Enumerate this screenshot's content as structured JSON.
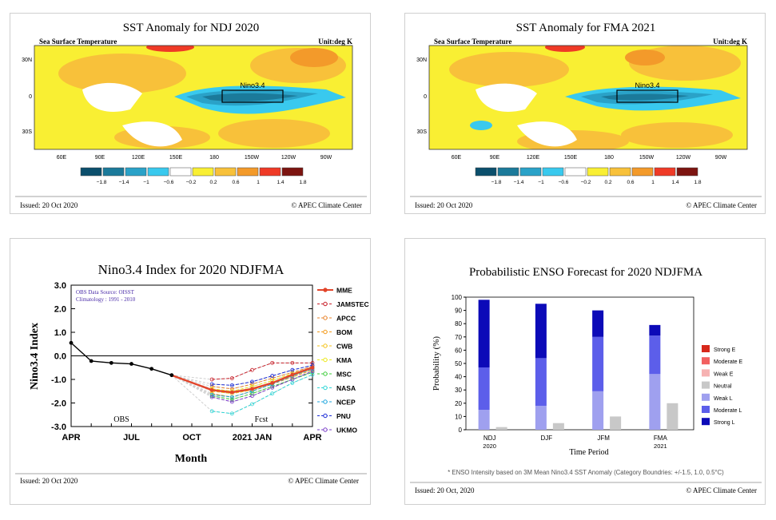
{
  "colors": {
    "cb": [
      "#0b4f6c",
      "#1b7a9a",
      "#2aa2c8",
      "#39c9ee",
      "#ffffff",
      "#f9ef33",
      "#f8c13a",
      "#f39a2a",
      "#ef3a26",
      "#7c1410"
    ],
    "obs_line": "#000000",
    "mme": "#e2452b",
    "prob": {
      "strong_e": "#d7281b",
      "moderate_e": "#f26060",
      "weak_e": "#f6b2b2",
      "neutral": "#c8c8c8",
      "weak_l": "#9fa0ef",
      "moderate_l": "#5c5eea",
      "strong_l": "#0c0ab8"
    }
  },
  "map1": {
    "title": "SST Anomaly for NDJ 2020",
    "left_label": "Sea Surface Temperature",
    "unit": "Unit:deg K",
    "box_label": "Nino3.4",
    "lat_labels": [
      "30N",
      "0",
      "30S"
    ],
    "lon_labels": [
      "60E",
      "90E",
      "120E",
      "150E",
      "180",
      "150W",
      "120W",
      "90W"
    ],
    "colorbar_ticks": [
      "−1.8",
      "−1.4",
      "−1",
      "−0.6",
      "−0.2",
      "0.2",
      "0.6",
      "1",
      "1.4",
      "1.8"
    ],
    "issued": "Issued: 20 Oct 2020",
    "credit": "© APEC Climate Center"
  },
  "map2": {
    "title": "SST Anomaly for FMA 2021",
    "left_label": "Sea Surface Temperature",
    "unit": "Unit:deg K",
    "box_label": "Nino3.4",
    "lat_labels": [
      "30N",
      "0",
      "30S"
    ],
    "lon_labels": [
      "60E",
      "90E",
      "120E",
      "150E",
      "180",
      "150W",
      "120W",
      "90W"
    ],
    "colorbar_ticks": [
      "−1.8",
      "−1.4",
      "−1",
      "−0.6",
      "−0.2",
      "0.2",
      "0.6",
      "1",
      "1.4",
      "1.8"
    ],
    "issued": "Issued: 20 Oct 2020",
    "credit": "© APEC Climate Center"
  },
  "nino": {
    "issued": "Issued: 20 Oct 2020",
    "credit": "© APEC Climate Center",
    "note_line1": "OBS Data Source: OISST",
    "note_line2": "Climatology : 1991 - 2010",
    "obs_label": "OBS",
    "fcst_label": "Fcst"
  },
  "prob": {
    "issued": "Issued: 20 Oct, 2020",
    "credit": "© APEC Climate Center",
    "footnote": "* ENSO Intensity based on 3M Mean Nino3.4 SST Anomaly (Category Boundries: +/-1.5, 1.0, 0.5°C)"
  },
  "chart_data": [
    {
      "type": "line",
      "title": "Nino3.4 Index for 2020 NDJFMA",
      "xlabel": "Month",
      "ylabel": "Nino3.4 Index",
      "x_ticks": [
        "APR",
        "JUL",
        "OCT",
        "2021 JAN",
        "APR"
      ],
      "x_tick_index": [
        0,
        3,
        6,
        9,
        12
      ],
      "y_ticks": [
        "3.0",
        "2.0",
        "1.0",
        "0.0",
        "-1.0",
        "-2.0",
        "-3.0"
      ],
      "ylim": [
        -3,
        3
      ],
      "observed": {
        "x": [
          0,
          1,
          2,
          3,
          4,
          5
        ],
        "y": [
          0.55,
          -0.22,
          -0.3,
          -0.34,
          -0.55,
          -0.82
        ]
      },
      "series": [
        {
          "name": "MME",
          "color": "#e2452b",
          "x": [
            5,
            7,
            8,
            9,
            10,
            11,
            12
          ],
          "y": [
            -0.82,
            -1.45,
            -1.55,
            -1.4,
            -1.15,
            -0.8,
            -0.5
          ]
        },
        {
          "name": "JAMSTEC",
          "color": "#c8202a",
          "x": [
            5,
            7,
            8,
            9,
            10,
            11,
            12
          ],
          "y": [
            -0.82,
            -1.0,
            -0.95,
            -0.6,
            -0.3,
            -0.3,
            -0.3
          ]
        },
        {
          "name": "APCC",
          "color": "#e8832a",
          "x": [
            5,
            7,
            8,
            9,
            10,
            11,
            12
          ],
          "y": [
            -0.82,
            -1.3,
            -1.4,
            -1.2,
            -0.95,
            -0.7,
            -0.45
          ]
        },
        {
          "name": "BOM",
          "color": "#f39a1a",
          "x": [
            5,
            7,
            8,
            9,
            10,
            11,
            12
          ],
          "y": [
            -0.82,
            -1.6,
            -1.75,
            -1.5,
            -1.2,
            -0.9,
            -0.6
          ]
        },
        {
          "name": "CWB",
          "color": "#f3c21a",
          "x": [
            5,
            7,
            8,
            9,
            10,
            11,
            12
          ],
          "y": [
            -0.82,
            -1.5,
            -1.6,
            -1.45,
            -1.15,
            -0.85,
            -0.55
          ]
        },
        {
          "name": "KMA",
          "color": "#ece91a",
          "x": [
            5,
            7,
            8,
            9,
            10,
            11,
            12
          ],
          "y": [
            -0.82,
            -1.4,
            -1.5,
            -1.3,
            -1.05,
            -0.75,
            -0.5
          ]
        },
        {
          "name": "MSC",
          "color": "#3ccc3a",
          "x": [
            5,
            7,
            8,
            9,
            10,
            11,
            12
          ],
          "y": [
            -0.82,
            -1.7,
            -1.85,
            -1.6,
            -1.3,
            -1.0,
            -0.7
          ]
        },
        {
          "name": "NASA",
          "color": "#2fd6d6",
          "x": [
            5,
            7,
            8,
            9,
            10,
            11,
            12
          ],
          "y": [
            -0.82,
            -2.35,
            -2.45,
            -2.05,
            -1.6,
            -1.15,
            -0.8
          ]
        },
        {
          "name": "NCEP",
          "color": "#1fa6de",
          "x": [
            5,
            7,
            8,
            9,
            10,
            11,
            12
          ],
          "y": [
            -0.82,
            -1.65,
            -1.75,
            -1.5,
            -1.2,
            -0.85,
            -0.55
          ]
        },
        {
          "name": "PNU",
          "color": "#1a2bd6",
          "x": [
            5,
            7,
            8,
            9,
            10,
            11,
            12
          ],
          "y": [
            -0.82,
            -1.2,
            -1.25,
            -1.1,
            -0.85,
            -0.6,
            -0.4
          ]
        },
        {
          "name": "UKMO",
          "color": "#7a3cc8",
          "x": [
            5,
            7,
            8,
            9,
            10,
            11,
            12
          ],
          "y": [
            -0.82,
            -1.75,
            -1.95,
            -1.7,
            -1.35,
            -1.0,
            -0.65
          ]
        }
      ]
    },
    {
      "type": "bar",
      "title": "Probabilistic ENSO Forecast for 2020 NDJFMA",
      "xlabel": "Time Period",
      "ylabel": "Probability (%)",
      "categories": [
        "NDJ",
        "DJF",
        "JFM",
        "FMA"
      ],
      "category_sub": [
        "2020",
        "",
        "",
        "2021"
      ],
      "ylim": [
        0,
        100
      ],
      "y_ticks": [
        0,
        10,
        20,
        30,
        40,
        50,
        60,
        70,
        80,
        90,
        100
      ],
      "series": [
        {
          "name": "Strong E",
          "values": [
            0,
            0,
            0,
            0
          ]
        },
        {
          "name": "Moderate E",
          "values": [
            0,
            0,
            0,
            0
          ]
        },
        {
          "name": "Weak E",
          "values": [
            0,
            0,
            0,
            0
          ]
        },
        {
          "name": "Neutral",
          "values": [
            2,
            5,
            10,
            20
          ]
        },
        {
          "name": "Weak L",
          "values": [
            15,
            18,
            29,
            42
          ]
        },
        {
          "name": "Moderate L",
          "values": [
            32,
            36,
            41,
            29
          ]
        },
        {
          "name": "Strong L",
          "values": [
            51,
            41,
            20,
            8
          ]
        }
      ]
    }
  ]
}
